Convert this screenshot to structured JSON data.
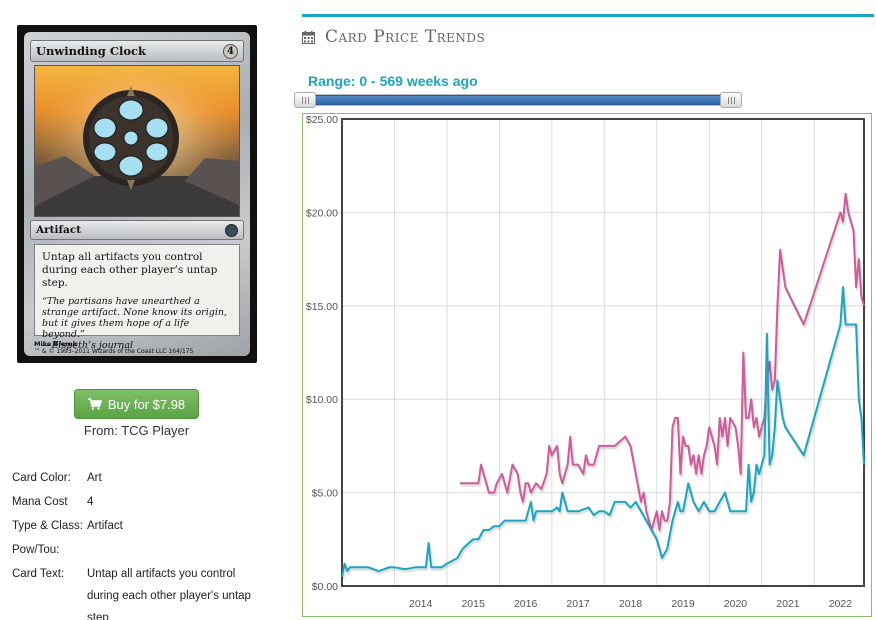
{
  "card": {
    "name": "Unwinding Clock",
    "mana_cost_symbol": "4",
    "type_line": "Artifact",
    "rules_text": "Untap all artifacts you control during each other player’s untap step.",
    "flavor_text": "“The partisans have unearthed a strange artifact. None know its origin, but it gives them hope of a life beyond.”",
    "flavor_attribution": "—Elspeth’s journal",
    "artist": "Mike Bierek",
    "footer": "™ & © 1993–2011 Wizards of the Coast LLC 164/175"
  },
  "buy": {
    "label": "Buy for $7.98",
    "source": "From: TCG Player",
    "icon": "shopping-cart-icon",
    "color": "#5ba445"
  },
  "attributes": [
    {
      "label": "Card Color:",
      "value": "Art"
    },
    {
      "label": "Mana Cost",
      "value": "4"
    },
    {
      "label": "Type & Class:",
      "value": "Artifact"
    },
    {
      "label": "Pow/Tou:",
      "value": ""
    },
    {
      "label": "Card Text:",
      "value": "Untap all artifacts you control during each other player's untap step."
    }
  ],
  "trends": {
    "title": "Card Price Trends",
    "icon": "calendar-icon",
    "range_label": "Range: 0 - 569 weeks ago",
    "range_weeks_from": 0,
    "range_weeks_to": 569,
    "accent": "#1aa6c0"
  },
  "chart_data": {
    "type": "line",
    "title": "",
    "xlabel": "",
    "ylabel": "",
    "xlim": [
      2013.0,
      2022.95
    ],
    "ylim": [
      0,
      25
    ],
    "x_ticks": [
      "2014",
      "2015",
      "2016",
      "2017",
      "2018",
      "2019",
      "2020",
      "2021",
      "2022"
    ],
    "y_ticks": [
      "$0.00",
      "$5.00",
      "$10.00",
      "$15.00",
      "$20.00",
      "$25.00"
    ],
    "y_tick_values": [
      0,
      5,
      10,
      15,
      20,
      25
    ],
    "grid": true,
    "series": [
      {
        "color": "#d05a9a",
        "x": [
          2015.25,
          2015.6,
          2015.65,
          2015.7,
          2015.75,
          2015.8,
          2015.9,
          2015.95,
          2016.05,
          2016.15,
          2016.25,
          2016.35,
          2016.4,
          2016.45,
          2016.5,
          2016.55,
          2016.6,
          2016.7,
          2016.8,
          2016.9,
          2016.95,
          2017.0,
          2017.1,
          2017.15,
          2017.2,
          2017.3,
          2017.35,
          2017.4,
          2017.5,
          2017.6,
          2017.65,
          2017.7,
          2017.8,
          2017.9,
          2018.0,
          2018.1,
          2018.2,
          2018.4,
          2018.5,
          2018.7,
          2018.75,
          2018.8,
          2018.85,
          2018.9,
          2019.0,
          2019.05,
          2019.1,
          2019.15,
          2019.2,
          2019.25,
          2019.3,
          2019.35,
          2019.4,
          2019.45,
          2019.5,
          2019.55,
          2019.6,
          2019.65,
          2019.7,
          2019.75,
          2019.8,
          2019.85,
          2019.9,
          2019.95,
          2020.0,
          2020.1,
          2020.15,
          2020.2,
          2020.25,
          2020.3,
          2020.35,
          2020.4,
          2020.5,
          2020.55,
          2020.6,
          2020.65,
          2020.7,
          2020.75,
          2020.8,
          2020.85,
          2020.9,
          2020.95,
          2021.0,
          2021.05,
          2021.1,
          2021.15,
          2021.2,
          2021.25,
          2021.3,
          2021.35,
          2021.4,
          2021.45,
          2021.8,
          2022.5,
          2022.55,
          2022.6,
          2022.65,
          2022.7,
          2022.75,
          2022.8,
          2022.85,
          2022.9,
          2022.95
        ],
        "values": [
          5.5,
          5.5,
          6.5,
          6.0,
          5.5,
          5.0,
          5.0,
          5.5,
          6.0,
          5.0,
          6.5,
          6.0,
          5.0,
          4.5,
          5.5,
          5.5,
          5.0,
          5.5,
          5.2,
          6.0,
          7.5,
          7.0,
          7.5,
          6.0,
          5.5,
          6.5,
          8.0,
          6.5,
          6.5,
          6.0,
          7.0,
          6.5,
          6.5,
          7.5,
          7.5,
          7.5,
          7.5,
          8.0,
          7.5,
          4.5,
          5.0,
          4.0,
          3.5,
          3.0,
          4.0,
          3.0,
          4.0,
          3.5,
          3.5,
          4.5,
          8.5,
          9.0,
          9.0,
          6.0,
          8.0,
          7.5,
          7.5,
          6.5,
          7.0,
          6.0,
          7.0,
          6.0,
          7.0,
          7.5,
          8.5,
          7.5,
          6.5,
          9.0,
          8.0,
          9.0,
          7.5,
          9.0,
          8.5,
          7.5,
          6.0,
          12.5,
          9.0,
          9.0,
          10.0,
          8.5,
          9.0,
          8.0,
          8.5,
          9.0,
          11.0,
          12.0,
          10.5,
          11.0,
          15.0,
          18.0,
          17.0,
          16.0,
          14.0,
          20.0,
          19.5,
          21.0,
          20.0,
          19.5,
          19.0,
          16.0,
          17.5,
          15.5,
          15.0
        ]
      },
      {
        "color": "#1aa6c0",
        "x": [
          2013.0,
          2013.05,
          2013.1,
          2013.15,
          2013.2,
          2013.3,
          2013.5,
          2013.7,
          2013.9,
          2014.0,
          2014.2,
          2014.4,
          2014.6,
          2014.65,
          2014.7,
          2014.75,
          2014.9,
          2015.0,
          2015.2,
          2015.3,
          2015.5,
          2015.6,
          2015.7,
          2015.8,
          2015.9,
          2016.0,
          2016.1,
          2016.3,
          2016.5,
          2016.6,
          2016.65,
          2016.7,
          2016.8,
          2016.9,
          2017.0,
          2017.1,
          2017.15,
          2017.2,
          2017.3,
          2017.5,
          2017.7,
          2017.8,
          2017.9,
          2018.0,
          2018.1,
          2018.2,
          2018.4,
          2018.5,
          2018.6,
          2018.8,
          2019.0,
          2019.1,
          2019.2,
          2019.3,
          2019.4,
          2019.45,
          2019.5,
          2019.6,
          2019.7,
          2019.8,
          2019.9,
          2020.0,
          2020.1,
          2020.2,
          2020.3,
          2020.4,
          2020.5,
          2020.6,
          2020.7,
          2020.75,
          2020.8,
          2020.85,
          2020.9,
          2020.95,
          2021.0,
          2021.05,
          2021.1,
          2021.15,
          2021.2,
          2021.25,
          2021.3,
          2021.35,
          2021.4,
          2021.45,
          2021.8,
          2022.5,
          2022.55,
          2022.6,
          2022.65,
          2022.7,
          2022.75,
          2022.8,
          2022.85,
          2022.9,
          2022.95
        ],
        "values": [
          0.5,
          1.2,
          0.8,
          1.0,
          1.0,
          1.0,
          1.0,
          0.8,
          1.0,
          1.0,
          0.9,
          1.0,
          1.0,
          2.3,
          1.0,
          1.0,
          1.0,
          1.2,
          1.5,
          2.0,
          2.5,
          2.5,
          3.0,
          3.0,
          3.2,
          3.2,
          3.5,
          3.5,
          3.5,
          4.5,
          3.5,
          4.0,
          4.0,
          4.0,
          4.0,
          4.2,
          4.0,
          5.0,
          4.0,
          4.0,
          4.2,
          3.8,
          4.0,
          4.0,
          3.8,
          4.5,
          4.5,
          4.2,
          4.5,
          3.5,
          2.5,
          1.5,
          2.0,
          3.5,
          4.5,
          4.0,
          4.0,
          5.5,
          4.5,
          4.0,
          4.5,
          4.0,
          4.0,
          4.5,
          5.0,
          4.0,
          4.0,
          4.0,
          4.0,
          6.5,
          4.5,
          5.0,
          6.5,
          6.0,
          6.5,
          7.0,
          13.5,
          6.5,
          7.0,
          8.5,
          11.0,
          10.0,
          9.0,
          8.5,
          7.0,
          14.0,
          16.0,
          14.0,
          14.0,
          14.0,
          14.0,
          14.0,
          10.0,
          9.0,
          6.5
        ]
      }
    ]
  }
}
